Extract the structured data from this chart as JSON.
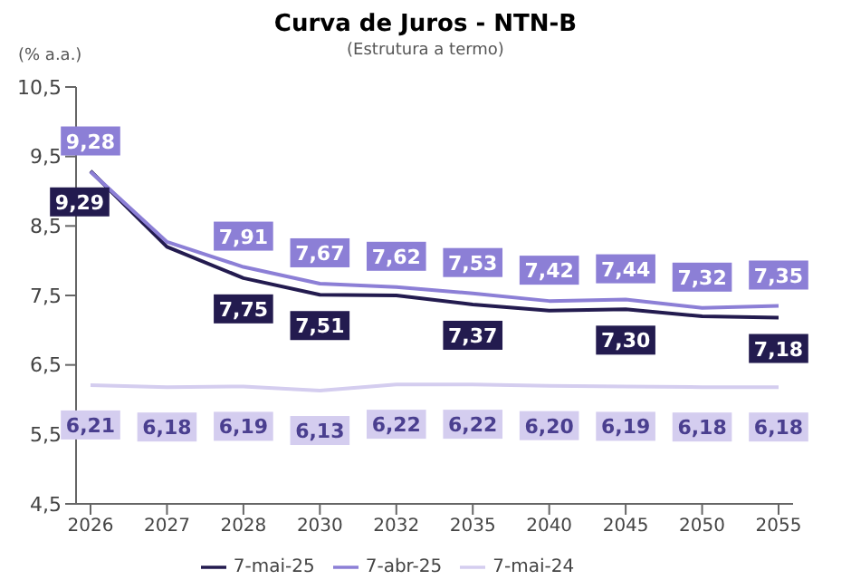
{
  "chart_data": {
    "type": "line",
    "title": "Curva de Juros - NTN-B",
    "subtitle": "(Estrutura a termo)",
    "ylabel": "(% a.a.)",
    "categories": [
      "2026",
      "2027",
      "2028",
      "2030",
      "2032",
      "2035",
      "2040",
      "2045",
      "2050",
      "2055"
    ],
    "series": [
      {
        "name": "7-mai-25",
        "color": "#231b4f",
        "values": [
          9.29,
          8.2,
          7.75,
          7.51,
          7.5,
          7.37,
          7.28,
          7.3,
          7.2,
          7.18
        ],
        "value_labels": [
          "9,29",
          null,
          "7,75",
          "7,51",
          null,
          "7,37",
          null,
          "7,30",
          null,
          "7,18"
        ]
      },
      {
        "name": "7-abr-25",
        "color": "#8c7fd6",
        "values": [
          9.28,
          8.27,
          7.91,
          7.67,
          7.62,
          7.53,
          7.42,
          7.44,
          7.32,
          7.35
        ],
        "value_labels": [
          "9,28",
          null,
          "7,91",
          "7,67",
          "7,62",
          "7,53",
          "7,42",
          "7,44",
          "7,32",
          "7,35"
        ]
      },
      {
        "name": "7-mai-24",
        "color": "#d4cdef",
        "values": [
          6.21,
          6.18,
          6.19,
          6.13,
          6.22,
          6.22,
          6.2,
          6.19,
          6.18,
          6.18
        ],
        "value_labels": [
          "6,21",
          "6,18",
          "6,19",
          "6,13",
          "6,22",
          "6,22",
          "6,20",
          "6,19",
          "6,18",
          "6,18"
        ]
      }
    ],
    "ylim": [
      4.5,
      10.5
    ],
    "yticks": [
      {
        "value": 4.5,
        "label": "4,5"
      },
      {
        "value": 5.5,
        "label": "5,5"
      },
      {
        "value": 6.5,
        "label": "6,5"
      },
      {
        "value": 7.5,
        "label": "7,5"
      },
      {
        "value": 8.5,
        "label": "8,5"
      },
      {
        "value": 9.5,
        "label": "9,5"
      },
      {
        "value": 10.5,
        "label": "10,5"
      }
    ],
    "grid": false,
    "legend": "bottom",
    "marker": "none",
    "line_style": "solid"
  }
}
